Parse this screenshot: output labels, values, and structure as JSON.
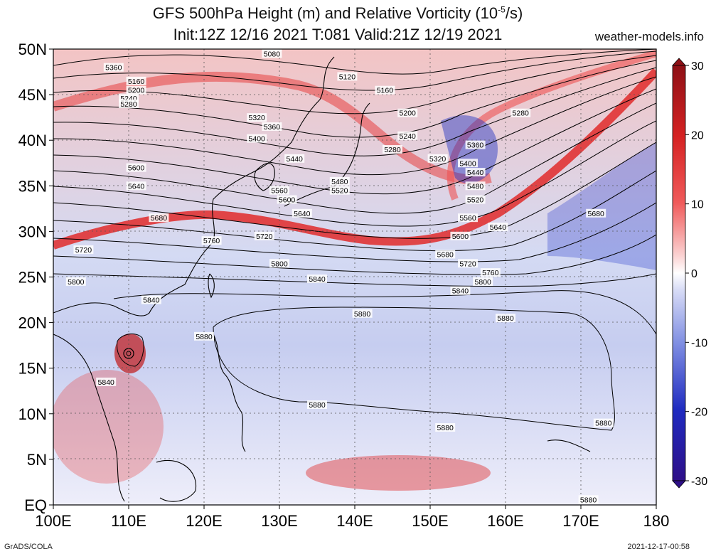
{
  "title": {
    "line1_prefix": "GFS 500hPa Height (m) and Relative Vorticity (10",
    "line1_exp": "-5",
    "line1_suffix": "/s)",
    "line2": "Init:12Z 12/16 2021 T:081 Valid:21Z 12/19 2021"
  },
  "site_label": "weather-models.info",
  "footer": {
    "left": "GrADS/COLA",
    "right": "2021-12-17-00:58"
  },
  "map": {
    "lat_labels": [
      "50N",
      "45N",
      "40N",
      "35N",
      "30N",
      "25N",
      "20N",
      "15N",
      "10N",
      "5N",
      "EQ"
    ],
    "lon_labels": [
      "100E",
      "110E",
      "120E",
      "130E",
      "140E",
      "150E",
      "160E",
      "170E",
      "180"
    ],
    "lat_range": [
      0,
      50
    ],
    "lon_range": [
      100,
      180
    ],
    "height_contours": [
      {
        "value": 5080,
        "label_positions": [
          [
            129,
            49.5
          ]
        ]
      },
      {
        "value": 5120,
        "label_positions": [
          [
            139,
            47
          ]
        ]
      },
      {
        "value": 5160,
        "label_positions": [
          [
            111,
            46.5
          ],
          [
            144,
            45.5
          ]
        ]
      },
      {
        "value": 5200,
        "label_positions": [
          [
            111,
            45.5
          ],
          [
            147,
            43
          ]
        ]
      },
      {
        "value": 5240,
        "label_positions": [
          [
            110,
            44.6
          ],
          [
            147,
            40.5
          ]
        ]
      },
      {
        "value": 5280,
        "label_positions": [
          [
            110,
            44
          ],
          [
            145,
            39
          ],
          [
            162,
            43
          ]
        ]
      },
      {
        "value": 5320,
        "label_positions": [
          [
            127,
            42.5
          ],
          [
            151,
            38
          ]
        ]
      },
      {
        "value": 5360,
        "label_positions": [
          [
            108,
            48
          ],
          [
            129,
            41.5
          ],
          [
            156,
            39.5
          ]
        ]
      },
      {
        "value": 5400,
        "label_positions": [
          [
            127,
            40.2
          ],
          [
            155,
            37.5
          ]
        ]
      },
      {
        "value": 5440,
        "label_positions": [
          [
            132,
            38
          ],
          [
            156,
            36.5
          ]
        ]
      },
      {
        "value": 5480,
        "label_positions": [
          [
            138,
            35.5
          ],
          [
            156,
            35
          ]
        ]
      },
      {
        "value": 5520,
        "label_positions": [
          [
            138,
            34.5
          ],
          [
            156,
            33.5
          ]
        ]
      },
      {
        "value": 5560,
        "label_positions": [
          [
            130,
            34.5
          ],
          [
            155,
            31.5
          ]
        ]
      },
      {
        "value": 5600,
        "label_positions": [
          [
            111,
            37
          ],
          [
            131,
            33.5
          ],
          [
            154,
            29.5
          ]
        ]
      },
      {
        "value": 5640,
        "label_positions": [
          [
            111,
            35
          ],
          [
            133,
            32
          ],
          [
            159,
            30.5
          ]
        ]
      },
      {
        "value": 5680,
        "label_positions": [
          [
            114,
            31.5
          ],
          [
            152,
            27.5
          ],
          [
            172,
            32
          ]
        ]
      },
      {
        "value": 5720,
        "label_positions": [
          [
            104,
            28
          ],
          [
            128,
            29.5
          ],
          [
            155,
            26.5
          ]
        ]
      },
      {
        "value": 5760,
        "label_positions": [
          [
            121,
            29
          ],
          [
            158,
            25.5
          ]
        ]
      },
      {
        "value": 5800,
        "label_positions": [
          [
            103,
            24.5
          ],
          [
            130,
            26.5
          ],
          [
            157,
            24.5
          ]
        ]
      },
      {
        "value": 5840,
        "label_positions": [
          [
            113,
            22.5
          ],
          [
            135,
            24.8
          ],
          [
            154,
            23.5
          ],
          [
            107,
            13.5
          ]
        ]
      },
      {
        "value": 5880,
        "label_positions": [
          [
            120,
            18.5
          ],
          [
            141,
            21
          ],
          [
            160,
            20.5
          ],
          [
            135,
            11
          ],
          [
            152,
            8.5
          ],
          [
            173,
            9
          ],
          [
            171,
            0.6
          ]
        ]
      }
    ],
    "colorbar": {
      "ticks": [
        "30",
        "20",
        "10",
        "0",
        "-10",
        "-20",
        "-30"
      ],
      "colors": [
        "#9c0e16",
        "#d42020",
        "#f05050",
        "#f8a0a0",
        "#fde0e0",
        "#ffffff",
        "#e0e4f8",
        "#a8b4ec",
        "#5064d8",
        "#1a22b8",
        "#30108c"
      ]
    }
  }
}
